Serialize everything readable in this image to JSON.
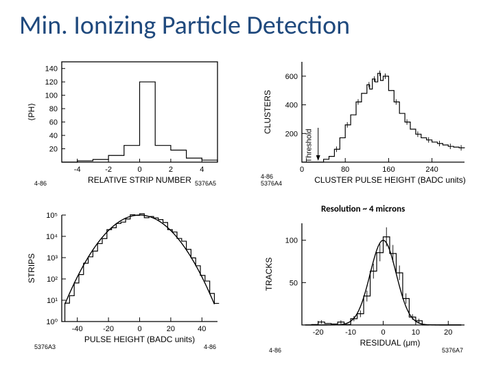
{
  "title": "Min. Ionizing Particle Detection",
  "caption": "Resolution ~ 4 microns",
  "colors": {
    "title": "#1f497d",
    "line": "#000000",
    "bg": "#ffffff"
  },
  "panel_tl": {
    "type": "histogram",
    "xlabel": "RELATIVE STRIP NUMBER",
    "ylabel": "⟨PH⟩",
    "corner_left": "4-86",
    "corner_right": "5376A5",
    "xlim": [
      -5,
      5
    ],
    "xticks": [
      -4,
      -2,
      0,
      2,
      4
    ],
    "ylim": [
      0,
      150
    ],
    "yticks": [
      20,
      40,
      60,
      80,
      100,
      120,
      140
    ],
    "yticklabels": [
      "20",
      "40",
      "60",
      "80",
      "100",
      "120",
      "140"
    ],
    "data": [
      {
        "x": -5,
        "y": 0
      },
      {
        "x": -4,
        "y": 2
      },
      {
        "x": -3,
        "y": 4
      },
      {
        "x": -2,
        "y": 10
      },
      {
        "x": -1,
        "y": 25
      },
      {
        "x": 0,
        "y": 120
      },
      {
        "x": 1,
        "y": 25
      },
      {
        "x": 2,
        "y": 18
      },
      {
        "x": 3,
        "y": 6
      },
      {
        "x": 4,
        "y": 3
      },
      {
        "x": 5,
        "y": 0
      }
    ]
  },
  "panel_tr": {
    "type": "histogram-landau",
    "xlabel": "CLUSTER  PULSE  HEIGHT     (BADC units)",
    "ylabel": "CLUSTERS",
    "threshold_label": "Threshold",
    "corner_left": "4-86\\n5376A4",
    "xlim": [
      0,
      300
    ],
    "xticks": [
      0,
      80,
      160,
      240
    ],
    "ylim": [
      0,
      700
    ],
    "yticks": [
      200,
      400,
      600
    ],
    "threshold_x": 30,
    "data": [
      {
        "x": 0,
        "y": 0
      },
      {
        "x": 10,
        "y": 0
      },
      {
        "x": 20,
        "y": 0
      },
      {
        "x": 30,
        "y": 0
      },
      {
        "x": 40,
        "y": 20
      },
      {
        "x": 50,
        "y": 40
      },
      {
        "x": 60,
        "y": 90
      },
      {
        "x": 70,
        "y": 170
      },
      {
        "x": 80,
        "y": 260
      },
      {
        "x": 90,
        "y": 330
      },
      {
        "x": 100,
        "y": 420
      },
      {
        "x": 110,
        "y": 480
      },
      {
        "x": 120,
        "y": 540
      },
      {
        "x": 125,
        "y": 510
      },
      {
        "x": 130,
        "y": 580
      },
      {
        "x": 135,
        "y": 560
      },
      {
        "x": 140,
        "y": 620
      },
      {
        "x": 145,
        "y": 570
      },
      {
        "x": 150,
        "y": 600
      },
      {
        "x": 160,
        "y": 500
      },
      {
        "x": 170,
        "y": 420
      },
      {
        "x": 180,
        "y": 340
      },
      {
        "x": 190,
        "y": 280
      },
      {
        "x": 200,
        "y": 230
      },
      {
        "x": 210,
        "y": 195
      },
      {
        "x": 220,
        "y": 170
      },
      {
        "x": 230,
        "y": 155
      },
      {
        "x": 240,
        "y": 140
      },
      {
        "x": 250,
        "y": 130
      },
      {
        "x": 260,
        "y": 120
      },
      {
        "x": 270,
        "y": 110
      },
      {
        "x": 280,
        "y": 105
      },
      {
        "x": 290,
        "y": 100
      },
      {
        "x": 300,
        "y": 98
      }
    ]
  },
  "panel_bl": {
    "type": "histogram-log-parabola",
    "xlabel": "PULSE HEIGHT   (BADC units)",
    "ylabel": "STRIPS",
    "corner_left": "5376A3",
    "corner_right": "4-86",
    "xlim": [
      -50,
      50
    ],
    "xticks": [
      -40,
      -20,
      0,
      20,
      40
    ],
    "ylog": true,
    "ylim": [
      1,
      100000
    ],
    "yticks": [
      1,
      10,
      100,
      1000,
      10000,
      100000
    ],
    "yticklabels": [
      "10⁰",
      "10¹",
      "10²",
      "10³",
      "10⁴",
      "10⁵"
    ]
  },
  "panel_br": {
    "type": "gaussian-fit",
    "xlabel": "RESIDUAL     (μm)",
    "ylabel": "TRACKS",
    "corner_left": "4-86",
    "corner_right": "5376A7",
    "xlim": [
      -25,
      25
    ],
    "xticks": [
      -20,
      -10,
      0,
      10,
      20
    ],
    "ylim": [
      0,
      120
    ],
    "yticks": [
      50,
      100
    ],
    "sigma": 4.0,
    "amp": 100
  }
}
